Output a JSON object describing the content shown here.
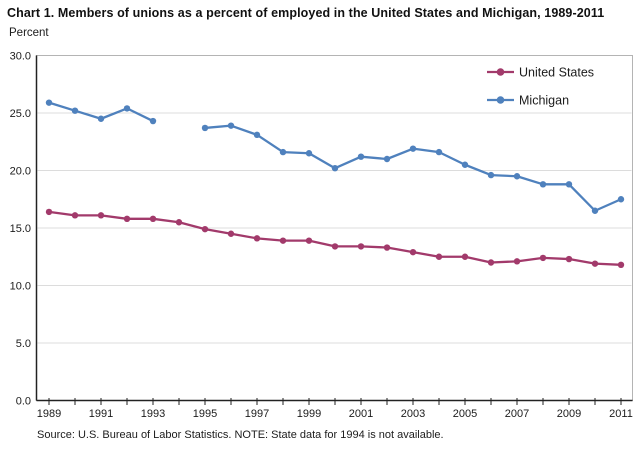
{
  "header": {
    "title": "Chart 1. Members of unions as a percent of employed in the United States and Michigan, 1989-2011",
    "axis_unit_label": "Percent"
  },
  "footer": {
    "source_note": "Source: U.S. Bureau of Labor Statistics. NOTE: State data for 1994 is not available."
  },
  "colors": {
    "united_states_line": "#a23a6b",
    "michigan_line": "#4f81bd",
    "gridline": "#dcdcdc",
    "frame": "#b4b4b4",
    "axis": "#222222",
    "tick_text": "#1c1c1c"
  },
  "chart_data": {
    "type": "line",
    "title": "Chart 1. Members of unions as a percent of employed in the United States and Michigan, 1989-2011",
    "ylabel": "Percent",
    "xlabel": "",
    "x": [
      1989,
      1990,
      1991,
      1992,
      1993,
      1994,
      1995,
      1996,
      1997,
      1998,
      1999,
      2000,
      2001,
      2002,
      2003,
      2004,
      2005,
      2006,
      2007,
      2008,
      2009,
      2010,
      2011
    ],
    "x_tick_labels": [
      "1989",
      "1991",
      "1993",
      "1995",
      "1997",
      "1999",
      "2001",
      "2003",
      "2005",
      "2007",
      "2009",
      "2011"
    ],
    "ylim": [
      0,
      30
    ],
    "yticks": [
      0,
      5,
      10,
      15,
      20,
      25,
      30
    ],
    "ytick_format_decimals": 1,
    "grid": "horizontal",
    "legend_position": "top-right",
    "series": [
      {
        "name": "United States",
        "color": "#a23a6b",
        "values": [
          16.4,
          16.1,
          16.1,
          15.8,
          15.8,
          15.5,
          14.9,
          14.5,
          14.1,
          13.9,
          13.9,
          13.4,
          13.4,
          13.3,
          12.9,
          12.5,
          12.5,
          12.0,
          12.1,
          12.4,
          12.3,
          11.9,
          11.8
        ]
      },
      {
        "name": "Michigan",
        "color": "#4f81bd",
        "values": [
          25.9,
          25.2,
          24.5,
          25.4,
          24.3,
          null,
          23.7,
          23.9,
          23.1,
          21.6,
          21.5,
          20.2,
          21.2,
          21.0,
          21.9,
          21.6,
          20.5,
          19.6,
          19.5,
          18.8,
          18.8,
          16.5,
          17.5
        ]
      }
    ],
    "notes": "Michigan value for 1994 is not available (line gap)."
  }
}
